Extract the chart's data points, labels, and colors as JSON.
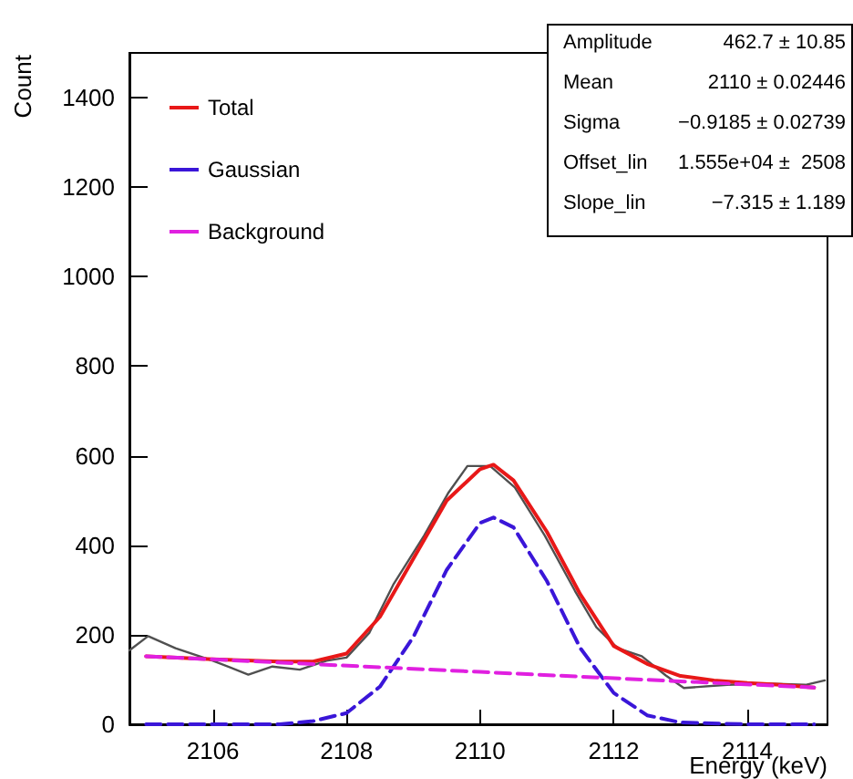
{
  "chart_data": {
    "type": "line",
    "xlabel": "Energy (keV)",
    "ylabel": "Count",
    "xlim": [
      2104.75,
      2115.2
    ],
    "xticks": [
      2106,
      2108,
      2110,
      2112,
      2114
    ],
    "ylim": [
      0,
      1500
    ],
    "yticks": [
      0,
      200,
      400,
      600,
      800,
      1000,
      1200,
      1400
    ],
    "grid": false,
    "legend": "top left",
    "marker": "none",
    "annotations": [
      "Amplitude",
      "462.7 ± 10.85",
      "Mean",
      "2110 ± 0.02446",
      "Sigma",
      "−0.9185 ± 0.02739",
      "Offset_lin",
      "1.555e+04 ±  2508",
      "Slope_lin",
      "−7.315 ± 1.189"
    ],
    "series": [
      {
        "color": "#505050",
        "line_style": "solid",
        "x": [
          2104.75,
          2105.03,
          2105.44,
          2106,
          2106.53,
          2106.89,
          2107.3,
          2107.7,
          2108,
          2108.34,
          2108.7,
          2109.16,
          2109.52,
          2109.81,
          2110.15,
          2110.52,
          2110.97,
          2111.42,
          2111.74,
          2112.06,
          2112.42,
          2112.78,
          2113.05,
          2113.7,
          2114.33,
          2114.87,
          2115.16
        ],
        "values": [
          165,
          197,
          170,
          142,
          111,
          129,
          122,
          142,
          149,
          204,
          312,
          421,
          516,
          577,
          577,
          529,
          421,
          298,
          217,
          170,
          152,
          109,
          81,
          88,
          91,
          88,
          98
        ]
      },
      {
        "name": "Total",
        "color": "#e81818",
        "line_style": "solid",
        "x": [
          2105,
          2106,
          2107,
          2107.5,
          2108,
          2108.5,
          2109,
          2109.5,
          2110,
          2110.2,
          2110.5,
          2111,
          2111.5,
          2112,
          2112.5,
          2113,
          2113.5,
          2114,
          2114.5,
          2115
        ],
        "values": [
          152,
          145,
          140,
          140,
          158,
          240,
          370,
          500,
          570,
          580,
          545,
          430,
          290,
          175,
          135,
          108,
          98,
          92,
          88,
          82
        ]
      },
      {
        "name": "Gaussian",
        "color": "#3a16d8",
        "line_style": "dashed",
        "x": [
          2105,
          2107,
          2107.5,
          2108,
          2108.5,
          2109,
          2109.5,
          2110,
          2110.2,
          2110.5,
          2111,
          2111.5,
          2112,
          2112.5,
          2113,
          2114,
          2115
        ],
        "values": [
          0,
          0,
          7,
          25,
          84,
          195,
          345,
          450,
          462,
          440,
          320,
          170,
          70,
          20,
          4,
          0,
          0
        ]
      },
      {
        "name": "Background",
        "color": "#e020e0",
        "line_style": "dashed",
        "x": [
          2105,
          2110,
          2115
        ],
        "values": [
          152,
          117,
          82
        ]
      }
    ]
  }
}
